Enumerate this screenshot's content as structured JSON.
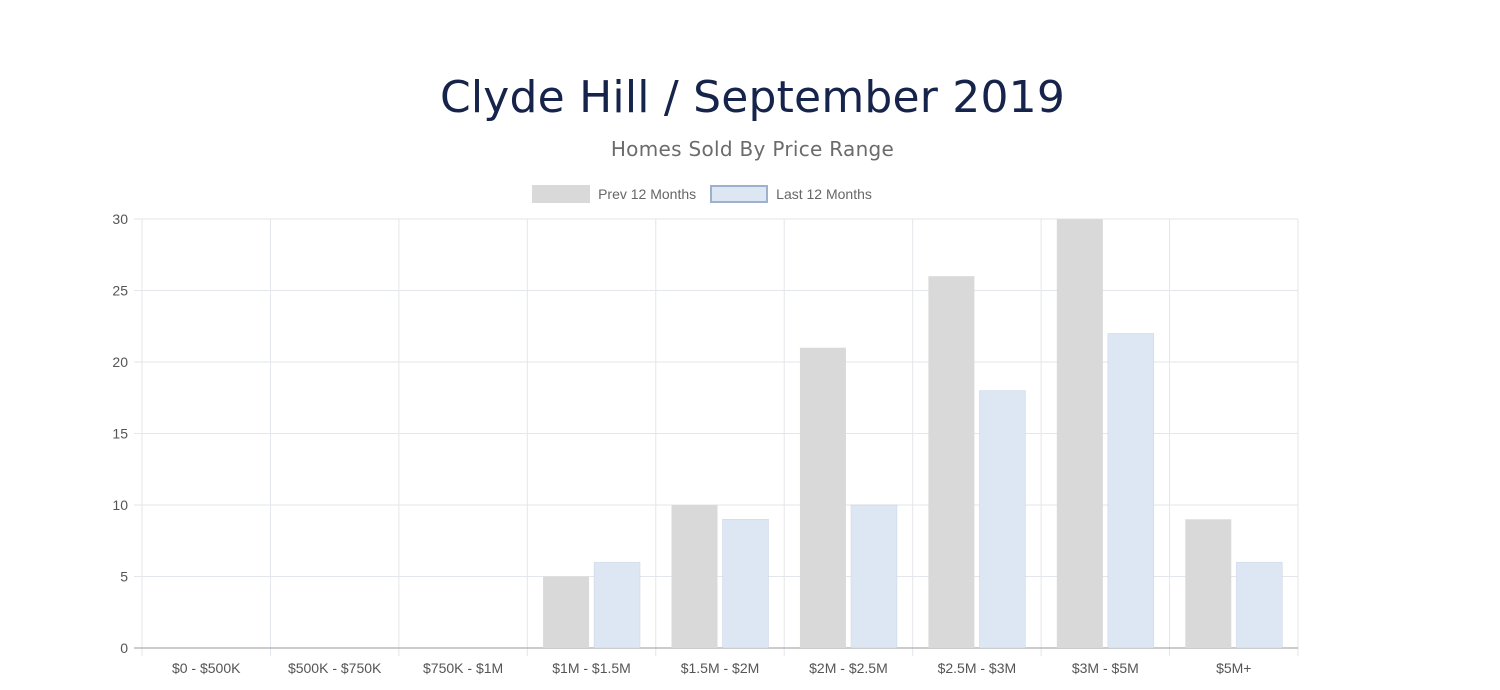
{
  "chart_data": {
    "type": "bar",
    "title": "Clyde Hill / September 2019",
    "subtitle": "Homes Sold By Price Range",
    "categories": [
      "$0 - $500K",
      "$500K - $750K",
      "$750K - $1M",
      "$1M - $1.5M",
      "$1.5M - $2M",
      "$2M - $2.5M",
      "$2.5M - $3M",
      "$3M - $5M",
      "$5M+"
    ],
    "series": [
      {
        "name": "Prev 12 Months",
        "values": [
          0,
          0,
          0,
          5,
          10,
          21,
          26,
          30,
          9
        ],
        "color": "#d9d9d9"
      },
      {
        "name": "Last 12 Months",
        "values": [
          0,
          0,
          0,
          6,
          9,
          10,
          18,
          22,
          6
        ],
        "color": "#dde6f3",
        "border_color": "#9fb0cc"
      }
    ],
    "ylim": [
      0,
      30
    ],
    "yticks": [
      0,
      5,
      10,
      15,
      20,
      25,
      30
    ],
    "xlabel": "",
    "ylabel": "",
    "grid": true,
    "legend_position": "top"
  }
}
